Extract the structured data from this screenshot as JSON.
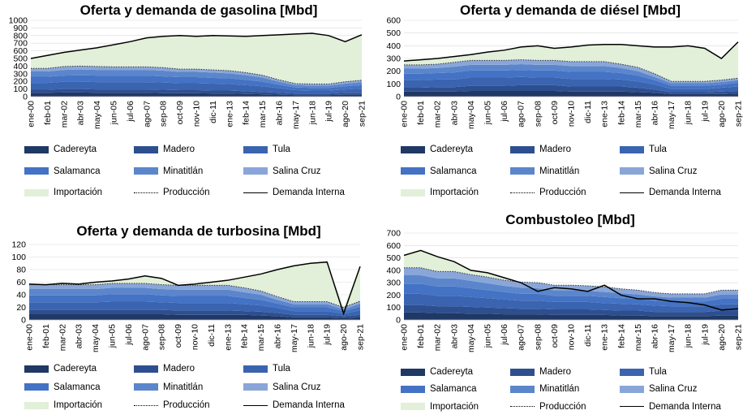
{
  "legend": {
    "cadereyta": "Cadereyta",
    "madero": "Madero",
    "tula": "Tula",
    "salamanca": "Salamanca",
    "minatitlan": "Minatitlán",
    "salina_cruz": "Salina Cruz",
    "importacion": "Importación",
    "produccion": "Producción",
    "demanda": "Demanda Interna"
  },
  "colors": {
    "cadereyta": "#1f3864",
    "madero": "#2e4f8f",
    "tula": "#3a64b0",
    "salamanca": "#4472c4",
    "minatitlan": "#5b86cc",
    "salina_cruz": "#8aa6d8",
    "importacion": "#e2efd9",
    "demanda": "#000000"
  },
  "chart_data": [
    {
      "type": "area",
      "title": "Oferta y demanda de gasolina [Mbd]",
      "xticks": [
        "ene-00",
        "feb-01",
        "mar-02",
        "abr-03",
        "may-04",
        "jun-05",
        "jul-06",
        "ago-07",
        "sep-08",
        "oct-09",
        "nov-10",
        "dic-11",
        "ene-13",
        "feb-14",
        "mar-15",
        "abr-16",
        "may-17",
        "jun-18",
        "jul-19",
        "ago-20",
        "sep-21"
      ],
      "ylim": [
        0,
        1000
      ],
      "yticks": [
        0,
        100,
        200,
        300,
        400,
        500,
        600,
        700,
        800,
        900,
        1000
      ],
      "series": [
        {
          "name": "Cadereyta",
          "values": [
            50,
            50,
            55,
            55,
            50,
            50,
            50,
            50,
            45,
            45,
            45,
            40,
            40,
            35,
            30,
            25,
            20,
            20,
            20,
            25,
            25
          ]
        },
        {
          "name": "Madero",
          "values": [
            40,
            40,
            45,
            45,
            45,
            45,
            45,
            45,
            45,
            40,
            40,
            40,
            40,
            35,
            30,
            25,
            20,
            20,
            20,
            25,
            25
          ]
        },
        {
          "name": "Tula",
          "values": [
            90,
            90,
            95,
            95,
            95,
            95,
            95,
            95,
            95,
            90,
            90,
            90,
            85,
            80,
            75,
            60,
            45,
            40,
            40,
            45,
            55
          ]
        },
        {
          "name": "Salamanca",
          "values": [
            80,
            80,
            80,
            85,
            85,
            85,
            85,
            85,
            80,
            80,
            80,
            75,
            75,
            70,
            60,
            45,
            35,
            35,
            35,
            40,
            45
          ]
        },
        {
          "name": "Minatitlán",
          "values": [
            70,
            70,
            75,
            75,
            75,
            75,
            75,
            75,
            75,
            70,
            70,
            70,
            65,
            60,
            55,
            40,
            30,
            30,
            30,
            35,
            40
          ]
        },
        {
          "name": "Salina Cruz",
          "values": [
            40,
            40,
            45,
            45,
            45,
            40,
            40,
            40,
            40,
            35,
            35,
            35,
            35,
            35,
            30,
            25,
            20,
            20,
            20,
            25,
            25
          ]
        },
        {
          "name": "Demanda Interna",
          "values": [
            500,
            540,
            580,
            610,
            640,
            680,
            720,
            770,
            790,
            800,
            790,
            800,
            795,
            790,
            800,
            810,
            820,
            830,
            800,
            720,
            810
          ]
        }
      ]
    },
    {
      "type": "area",
      "title": "Oferta y demanda de diésel [Mbd]",
      "xticks": [
        "ene-00",
        "feb-01",
        "mar-02",
        "abr-03",
        "may-04",
        "jun-05",
        "jul-06",
        "ago-07",
        "sep-08",
        "oct-09",
        "nov-10",
        "dic-11",
        "ene-13",
        "feb-14",
        "mar-15",
        "abr-16",
        "may-17",
        "jun-18",
        "jul-19",
        "ago-20",
        "sep-21"
      ],
      "ylim": [
        0,
        600
      ],
      "yticks": [
        0,
        100,
        200,
        300,
        400,
        500,
        600
      ],
      "series": [
        {
          "name": "Cadereyta",
          "values": [
            40,
            40,
            40,
            40,
            45,
            45,
            45,
            45,
            45,
            45,
            40,
            40,
            40,
            40,
            35,
            30,
            20,
            20,
            20,
            20,
            25
          ]
        },
        {
          "name": "Madero",
          "values": [
            30,
            30,
            35,
            35,
            40,
            40,
            40,
            45,
            45,
            45,
            40,
            40,
            40,
            40,
            35,
            25,
            15,
            15,
            15,
            20,
            20
          ]
        },
        {
          "name": "Tula",
          "values": [
            60,
            60,
            60,
            60,
            65,
            65,
            65,
            65,
            60,
            60,
            60,
            60,
            60,
            55,
            50,
            40,
            25,
            25,
            25,
            30,
            35
          ]
        },
        {
          "name": "Salamanca",
          "values": [
            50,
            50,
            50,
            55,
            55,
            55,
            55,
            55,
            55,
            55,
            55,
            55,
            55,
            50,
            45,
            35,
            25,
            25,
            25,
            25,
            30
          ]
        },
        {
          "name": "Minatitlán",
          "values": [
            40,
            40,
            40,
            45,
            45,
            45,
            45,
            45,
            45,
            45,
            45,
            45,
            45,
            40,
            35,
            25,
            20,
            20,
            20,
            20,
            20
          ]
        },
        {
          "name": "Salina Cruz",
          "values": [
            30,
            30,
            30,
            35,
            35,
            35,
            35,
            35,
            35,
            35,
            35,
            35,
            35,
            30,
            30,
            25,
            15,
            15,
            15,
            15,
            15
          ]
        },
        {
          "name": "Demanda Interna",
          "values": [
            280,
            290,
            300,
            315,
            330,
            350,
            365,
            390,
            400,
            380,
            390,
            405,
            410,
            410,
            400,
            390,
            390,
            400,
            380,
            300,
            430
          ]
        }
      ]
    },
    {
      "type": "area",
      "title": "Oferta y demanda de turbosina [Mbd]",
      "xticks": [
        "ene-00",
        "feb-01",
        "mar-02",
        "abr-03",
        "may-04",
        "jun-05",
        "jul-06",
        "ago-07",
        "sep-08",
        "oct-09",
        "nov-10",
        "dic-11",
        "ene-13",
        "feb-14",
        "mar-15",
        "abr-16",
        "may-17",
        "jun-18",
        "jul-19",
        "ago-20",
        "sep-21"
      ],
      "ylim": [
        0,
        120
      ],
      "yticks": [
        0,
        20,
        40,
        60,
        80,
        100,
        120
      ],
      "series": [
        {
          "name": "Cadereyta",
          "values": [
            9,
            9,
            9,
            9,
            9,
            9,
            9,
            9,
            9,
            8,
            8,
            8,
            8,
            8,
            7,
            6,
            4,
            4,
            4,
            3,
            4
          ]
        },
        {
          "name": "Madero",
          "values": [
            7,
            7,
            7,
            7,
            7,
            7,
            7,
            7,
            7,
            7,
            7,
            7,
            7,
            6,
            6,
            5,
            4,
            4,
            4,
            3,
            4
          ]
        },
        {
          "name": "Tula",
          "values": [
            12,
            12,
            12,
            12,
            12,
            13,
            13,
            13,
            12,
            12,
            12,
            12,
            12,
            11,
            10,
            8,
            6,
            6,
            6,
            4,
            7
          ]
        },
        {
          "name": "Salamanca",
          "values": [
            11,
            11,
            11,
            11,
            11,
            12,
            12,
            12,
            11,
            11,
            11,
            11,
            11,
            10,
            9,
            7,
            6,
            6,
            6,
            4,
            6
          ]
        },
        {
          "name": "Minatitlán",
          "values": [
            10,
            10,
            10,
            10,
            10,
            10,
            10,
            10,
            10,
            10,
            10,
            10,
            10,
            9,
            8,
            6,
            5,
            5,
            5,
            3,
            5
          ]
        },
        {
          "name": "Salina Cruz",
          "values": [
            7,
            7,
            7,
            7,
            7,
            7,
            7,
            7,
            7,
            7,
            7,
            7,
            7,
            7,
            6,
            5,
            4,
            4,
            4,
            3,
            4
          ]
        },
        {
          "name": "Demanda Interna",
          "values": [
            57,
            56,
            58,
            57,
            60,
            62,
            65,
            70,
            66,
            55,
            57,
            60,
            63,
            68,
            73,
            80,
            86,
            90,
            92,
            10,
            85
          ]
        }
      ]
    },
    {
      "type": "area",
      "title": "Combustoleo [Mbd]",
      "xticks": [
        "ene-00",
        "feb-01",
        "mar-02",
        "abr-03",
        "may-04",
        "jun-05",
        "jul-06",
        "ago-07",
        "sep-08",
        "oct-09",
        "nov-10",
        "dic-11",
        "ene-13",
        "feb-14",
        "mar-15",
        "abr-16",
        "may-17",
        "jun-18",
        "jul-19",
        "ago-20",
        "sep-21"
      ],
      "ylim": [
        0,
        700
      ],
      "yticks": [
        0,
        100,
        200,
        300,
        400,
        500,
        600,
        700
      ],
      "series": [
        {
          "name": "Cadereyta",
          "values": [
            60,
            60,
            55,
            55,
            50,
            50,
            45,
            45,
            45,
            40,
            40,
            40,
            40,
            35,
            35,
            30,
            30,
            30,
            30,
            35,
            35
          ]
        },
        {
          "name": "Madero",
          "values": [
            60,
            60,
            55,
            55,
            55,
            50,
            50,
            45,
            45,
            45,
            45,
            45,
            40,
            40,
            40,
            35,
            35,
            35,
            35,
            40,
            40
          ]
        },
        {
          "name": "Tula",
          "values": [
            90,
            90,
            85,
            85,
            80,
            75,
            70,
            65,
            65,
            60,
            60,
            60,
            55,
            55,
            50,
            50,
            45,
            45,
            45,
            50,
            50
          ]
        },
        {
          "name": "Salamanca",
          "values": [
            80,
            80,
            75,
            75,
            70,
            65,
            60,
            55,
            55,
            50,
            50,
            50,
            50,
            45,
            45,
            40,
            40,
            40,
            40,
            45,
            45
          ]
        },
        {
          "name": "Minatitlán",
          "values": [
            70,
            70,
            65,
            65,
            60,
            55,
            50,
            50,
            45,
            45,
            45,
            40,
            40,
            40,
            35,
            35,
            30,
            30,
            30,
            35,
            35
          ]
        },
        {
          "name": "Salina Cruz",
          "values": [
            60,
            60,
            55,
            55,
            50,
            50,
            45,
            45,
            45,
            40,
            40,
            40,
            40,
            35,
            35,
            30,
            30,
            30,
            30,
            35,
            35
          ]
        },
        {
          "name": "Demanda Interna",
          "values": [
            520,
            560,
            510,
            470,
            400,
            380,
            340,
            300,
            230,
            260,
            250,
            230,
            280,
            200,
            170,
            170,
            150,
            140,
            120,
            80,
            90
          ]
        }
      ]
    }
  ]
}
